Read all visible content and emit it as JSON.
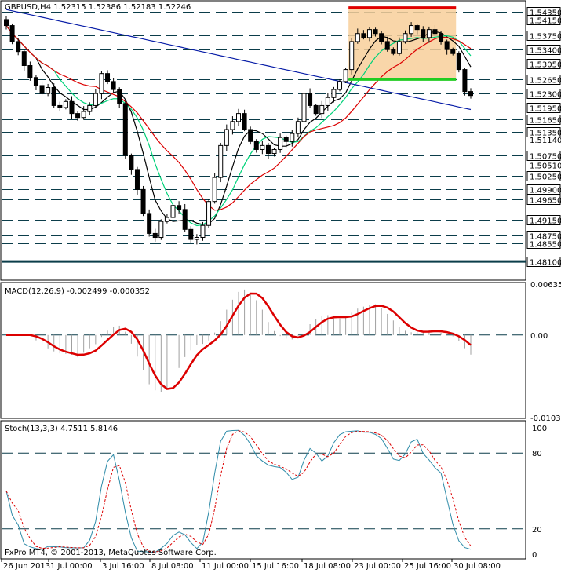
{
  "chart_data": [
    {
      "type": "candlestick",
      "title": "GBPUSD,H4  1.52315 1.52386 1.52183 1.52246",
      "ylim": [
        1.4765,
        1.546
      ],
      "price_levels": [
        {
          "value": 1.5435,
          "label": "1.54350",
          "boxed": true
        },
        {
          "value": 1.5415,
          "label": "1.54150",
          "boxed": true
        },
        {
          "value": 1.5375,
          "label": "1.53750",
          "boxed": true
        },
        {
          "value": 1.534,
          "label": "1.53400",
          "boxed": true
        },
        {
          "value": 1.5305,
          "label": "1.53050",
          "boxed": true
        },
        {
          "value": 1.5265,
          "label": "1.52650",
          "boxed": true
        },
        {
          "value": 1.523,
          "label": "1.52300",
          "boxed": true
        },
        {
          "value": 1.5195,
          "label": "1.51950",
          "boxed": true
        },
        {
          "value": 1.5165,
          "label": "1.51650",
          "boxed": true
        },
        {
          "value": 1.5135,
          "label": "1.51350",
          "boxed": true
        },
        {
          "value": 1.5075,
          "label": "1.50750",
          "boxed": true
        },
        {
          "value": 1.5025,
          "label": "1.50250",
          "boxed": true
        },
        {
          "value": 1.499,
          "label": "1.49900",
          "boxed": true
        },
        {
          "value": 1.4965,
          "label": "1.49650",
          "boxed": true
        },
        {
          "value": 1.4915,
          "label": "1.49150",
          "boxed": true
        },
        {
          "value": 1.4875,
          "label": "1.48750",
          "boxed": true
        },
        {
          "value": 1.4855,
          "label": "1.48550",
          "boxed": true
        },
        {
          "value": 1.481,
          "label": "1.48100",
          "boxed": true
        }
      ],
      "plain_ticks": [
        {
          "value": 1.5114,
          "label": "1.51140"
        },
        {
          "value": 1.5051,
          "label": "1.50510"
        }
      ],
      "resistance_line": 1.5445,
      "support_line": 1.5265,
      "zone": [
        1.5265,
        1.5445
      ],
      "closes": [
        1.54,
        1.536,
        1.5335,
        1.53,
        1.527,
        1.525,
        1.523,
        1.5245,
        1.52,
        1.5195,
        1.521,
        1.518,
        1.517,
        1.5185,
        1.52,
        1.523,
        1.528,
        1.526,
        1.524,
        1.5205,
        1.5075,
        1.504,
        1.499,
        1.493,
        1.488,
        1.487,
        1.491,
        1.492,
        1.495,
        1.494,
        1.489,
        1.4865,
        1.487,
        1.49,
        1.496,
        1.502,
        1.51,
        1.514,
        1.516,
        1.518,
        1.514,
        1.511,
        1.509,
        1.51,
        1.508,
        1.509,
        1.512,
        1.511,
        1.513,
        1.516,
        1.523,
        1.52,
        1.518,
        1.52,
        1.522,
        1.524,
        1.526,
        1.529,
        1.536,
        1.538,
        1.537,
        1.539,
        1.538,
        1.536,
        1.534,
        1.533,
        1.536,
        1.538,
        1.54,
        1.539,
        1.537,
        1.539,
        1.538,
        1.536,
        1.534,
        1.533,
        1.529,
        1.5235,
        1.5225
      ],
      "moving_averages": [
        {
          "name": "MA-black",
          "color": "#000000"
        },
        {
          "name": "MA-green",
          "color": "#00d27a"
        },
        {
          "name": "MA-red",
          "color": "#dc0000"
        },
        {
          "name": "MA-blue",
          "color": "#0a1fa8"
        }
      ],
      "x_tick_labels": [
        "26 Jun 2013",
        "1 Jul 00:00",
        "3 Jul 16:00",
        "8 Jul 08:00",
        "11 Jul 00:00",
        "15 Jul 16:00",
        "18 Jul 08:00",
        "23 Jul 00:00",
        "25 Jul 16:00",
        "30 Jul 08:00"
      ]
    },
    {
      "type": "bar+line",
      "title": "MACD(12,26,9) -0.002499 -0.000352",
      "ylim": [
        -0.01032,
        0.00635
      ],
      "tick_labels": [
        "0.006353",
        "0.00",
        "-0.010328"
      ],
      "tick_values": [
        0.006353,
        0.0,
        -0.010328
      ],
      "signal_color": "#dc0000"
    },
    {
      "type": "line",
      "title": "Stoch(13,3,3) 4.7511 5.8146",
      "ylim": [
        0,
        100
      ],
      "tick_labels": [
        "100",
        "80",
        "20",
        "0"
      ],
      "tick_values": [
        100,
        80,
        20,
        0
      ],
      "main_color": "#2e8ba8",
      "signal_color": "#dc0000",
      "watermark": "FxPro MT4, © 2001-2013, MetaQuotes Software Corp."
    }
  ]
}
